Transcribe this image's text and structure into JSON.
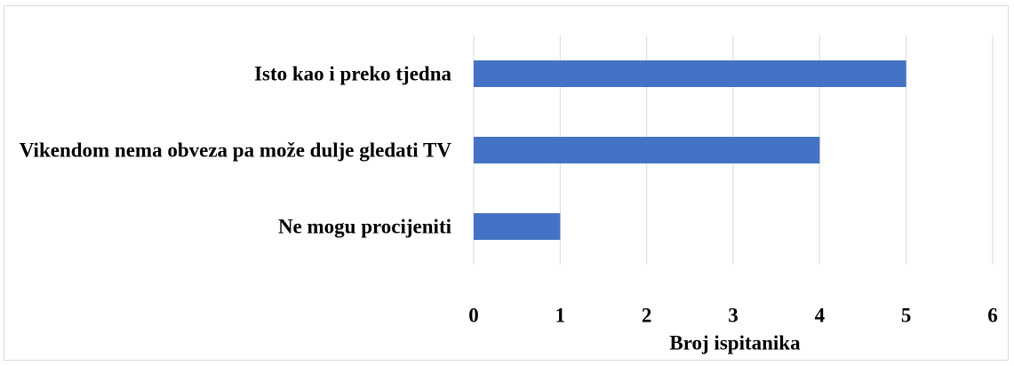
{
  "chart_data": {
    "type": "bar",
    "orientation": "horizontal",
    "categories": [
      "Isto kao i preko tjedna",
      "Vikendom nema obveza pa može dulje gledati TV",
      "Ne mogu procijeniti"
    ],
    "values": [
      5,
      4,
      1
    ],
    "color": "#4472c4",
    "xlim": [
      0,
      6
    ],
    "xticks": [
      0,
      1,
      2,
      3,
      4,
      5,
      6
    ],
    "grid": true,
    "xlabel": "Broj ispitanika"
  }
}
